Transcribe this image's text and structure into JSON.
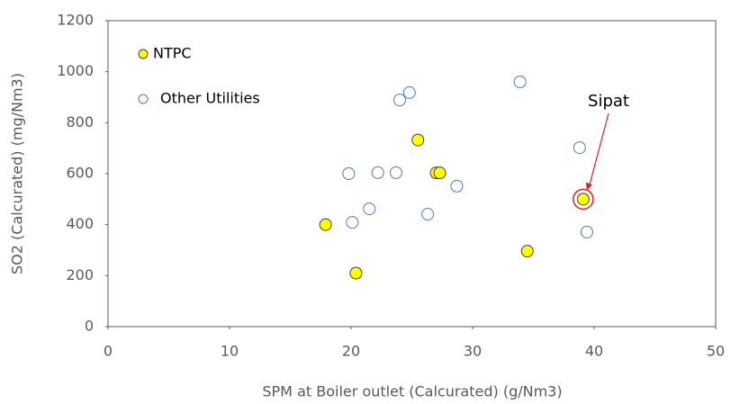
{
  "chart_data": {
    "type": "scatter",
    "xlabel": "SPM at Boiler outlet (Calcurated)  (g/Nm3)",
    "ylabel": "SO2 (Calcurated)  (mg/Nm3)",
    "xlim": [
      0,
      50
    ],
    "xticks": [
      0,
      10,
      20,
      30,
      40,
      50
    ],
    "ylim": [
      0,
      1200
    ],
    "yticks": [
      0,
      200,
      400,
      600,
      800,
      1000,
      1200
    ],
    "legend": "upper left",
    "annotation": "Sipat",
    "series": [
      {
        "name": "NTPC",
        "color": "#ffff00",
        "edgecolor": "#404040",
        "x": [
          17.9,
          20.4,
          25.5,
          27.0,
          27.3,
          34.5,
          39.1
        ],
        "values": [
          400,
          210,
          732,
          603,
          603,
          296,
          500
        ]
      },
      {
        "name": "Other Utilities",
        "color": "#ffffff",
        "edgecolor": "#4a7ebb",
        "x": [
          19.8,
          20.1,
          21.5,
          22.2,
          23.7,
          24.0,
          24.8,
          26.3,
          28.7,
          33.9,
          38.8,
          39.4
        ],
        "values": [
          600,
          409,
          462,
          604,
          604,
          889,
          918,
          441,
          551,
          960,
          702,
          371
        ]
      }
    ]
  }
}
